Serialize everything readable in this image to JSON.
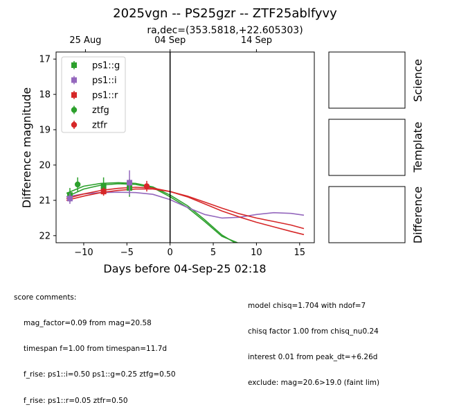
{
  "chart_data": {
    "type": "scatter",
    "title": "2025vgn -- PS25gzr -- ZTF25ablfyvy",
    "subtitle": "ra,dec=(353.5818,+22.605303)",
    "xlabel": "Days before 04-Sep-25 02:18",
    "ylabel": "Difference magnitude",
    "xlim": [
      -13.2,
      16.7
    ],
    "ylim": [
      22.2,
      16.8
    ],
    "y_inverted": true,
    "x_ticks": [
      -10,
      -5,
      0,
      5,
      10,
      15
    ],
    "y_ticks": [
      17,
      18,
      19,
      20,
      21,
      22
    ],
    "top_axis_ticks": [
      {
        "x": -9.8,
        "label": "25 Aug"
      },
      {
        "x": 0,
        "label": "04 Sep"
      },
      {
        "x": 10,
        "label": "14 Sep"
      }
    ],
    "vline_x": 0,
    "legend_position": "top-left",
    "series": [
      {
        "name": "ps1::g",
        "marker": "square",
        "color": "#2ca02c",
        "points": [
          {
            "x": -11.6,
            "y": 20.85,
            "err": 0.2
          },
          {
            "x": -7.7,
            "y": 20.6,
            "err": 0.25
          },
          {
            "x": -4.7,
            "y": 20.65,
            "err": 0.25
          }
        ]
      },
      {
        "name": "ps1::i",
        "marker": "square",
        "color": "#9467bd",
        "points": [
          {
            "x": -11.6,
            "y": 20.95,
            "err": 0.15
          },
          {
            "x": -4.7,
            "y": 20.5,
            "err": 0.35
          }
        ]
      },
      {
        "name": "ps1::r",
        "marker": "square",
        "color": "#d62728",
        "points": [
          {
            "x": -7.7,
            "y": 20.75,
            "err": 0.12
          }
        ]
      },
      {
        "name": "ztfg",
        "marker": "circle",
        "color": "#2ca02c",
        "points": [
          {
            "x": -10.7,
            "y": 20.55,
            "err": 0.2
          }
        ]
      },
      {
        "name": "ztfr",
        "marker": "circle",
        "color": "#d62728",
        "points": [
          {
            "x": -2.7,
            "y": 20.6,
            "err": 0.15
          }
        ]
      }
    ],
    "model_curves": [
      {
        "color": "#2ca02c",
        "x": [
          -12,
          -10,
          -8,
          -6,
          -4,
          -2,
          0,
          2,
          4,
          6,
          7.5
        ],
        "y": [
          20.8,
          20.6,
          20.52,
          20.5,
          20.52,
          20.62,
          20.85,
          21.15,
          21.55,
          21.98,
          22.2
        ]
      },
      {
        "color": "#2ca02c",
        "x": [
          -12,
          -10,
          -8,
          -6,
          -4,
          -2,
          0,
          2,
          4,
          6,
          7.8
        ],
        "y": [
          20.9,
          20.68,
          20.57,
          20.53,
          20.55,
          20.64,
          20.9,
          21.2,
          21.6,
          22.02,
          22.2
        ]
      },
      {
        "color": "#9467bd",
        "x": [
          -12,
          -10,
          -8,
          -6,
          -4,
          -2,
          0,
          2,
          4,
          6,
          8,
          10,
          12,
          14,
          15.5
        ],
        "y": [
          20.9,
          20.82,
          20.78,
          20.77,
          20.78,
          20.83,
          20.98,
          21.2,
          21.4,
          21.5,
          21.48,
          21.4,
          21.35,
          21.37,
          21.42
        ]
      },
      {
        "color": "#d62728",
        "x": [
          -12,
          -10,
          -8,
          -6,
          -4,
          -2,
          0,
          2,
          4,
          6,
          8,
          10,
          12,
          14,
          15.5
        ],
        "y": [
          20.95,
          20.82,
          20.72,
          20.66,
          20.63,
          20.65,
          20.75,
          20.88,
          21.05,
          21.22,
          21.38,
          21.5,
          21.6,
          21.7,
          21.8
        ]
      },
      {
        "color": "#d62728",
        "x": [
          -12,
          -10,
          -8,
          -6,
          -4,
          -2,
          0,
          2,
          4,
          6,
          8,
          10,
          12,
          14,
          15.5
        ],
        "y": [
          21.0,
          20.88,
          20.78,
          20.72,
          20.68,
          20.68,
          20.75,
          20.9,
          21.1,
          21.3,
          21.47,
          21.62,
          21.75,
          21.88,
          21.97
        ]
      }
    ]
  },
  "panels": {
    "science": "Science",
    "template": "Template",
    "difference": "Difference"
  },
  "comments_left": {
    "header": "score comments:",
    "lines": [
      "mag_factor=0.09 from mag=20.58",
      "timespan f=1.00 from timespan=11.7d",
      "f_rise: ps1::i=0.50 ps1::g=0.25 ztfg=0.50",
      "f_rise: ps1::r=0.05 ztfr=0.50"
    ]
  },
  "comments_right": {
    "lines": [
      "model chisq=1.704 with ndof=7",
      "chisq factor 1.00 from chisq_nu0.24",
      "interest 0.01 from peak_dt=+6.26d",
      "exclude: mag=20.6>19.0 (faint lim)"
    ]
  }
}
